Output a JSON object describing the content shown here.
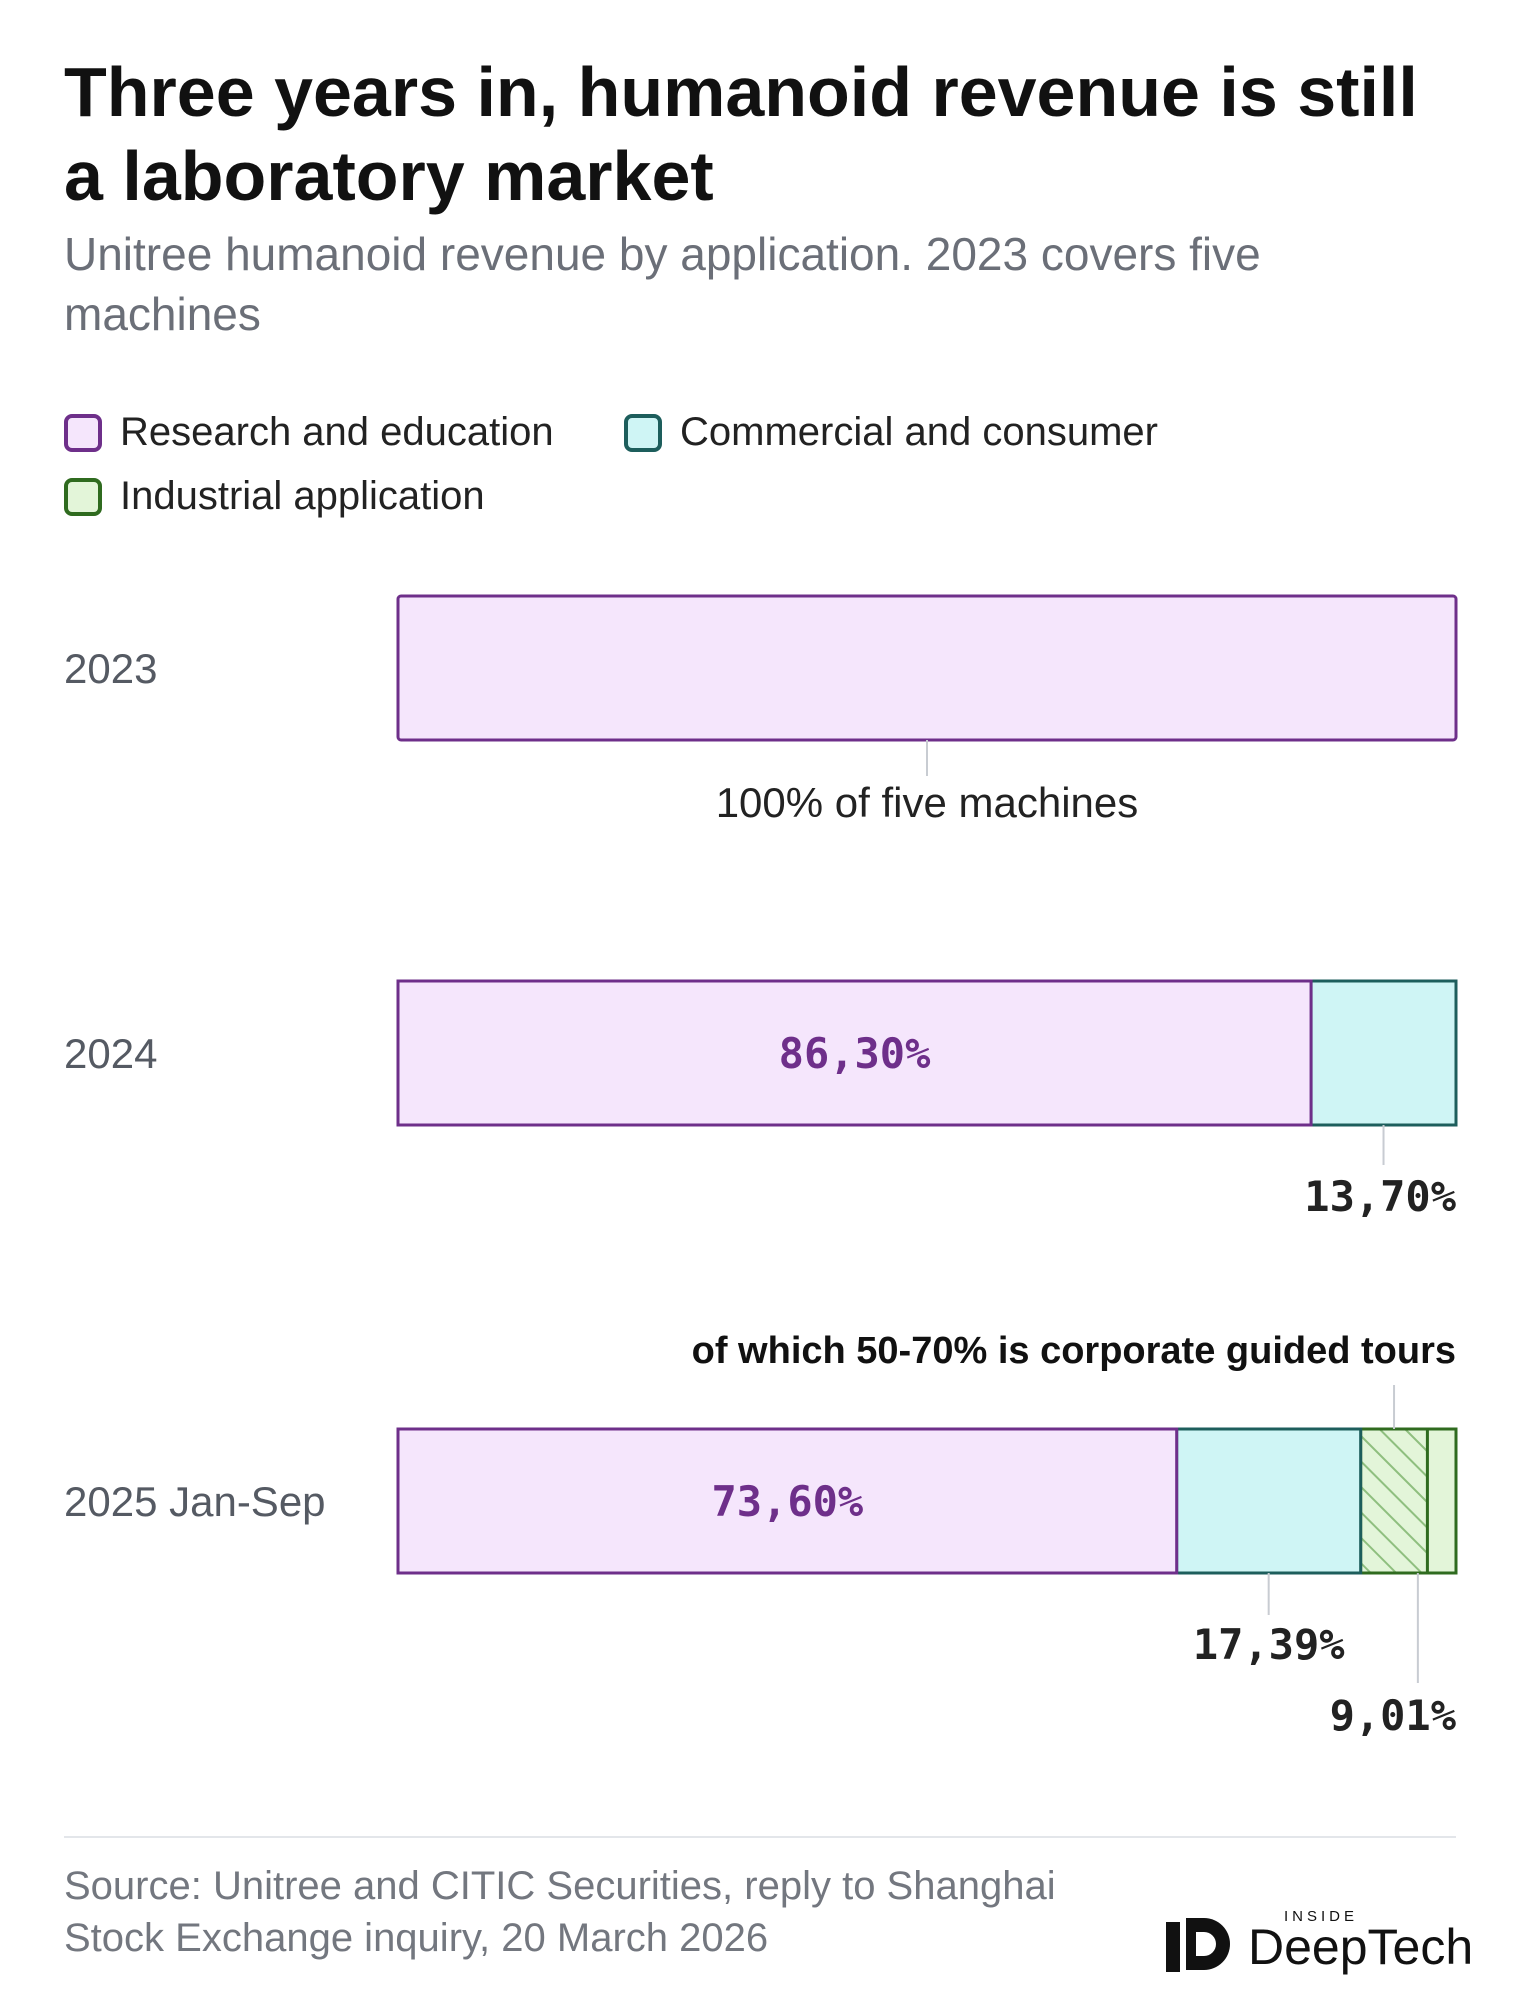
{
  "title": "Three years in, humanoid revenue is still a laboratory market",
  "subtitle": "Unitree humanoid revenue by application. 2023 covers five machines",
  "legend": [
    {
      "label": "Research and education",
      "color": "#f5e6fc",
      "border": "#6e2f8a"
    },
    {
      "label": "Commercial and consumer",
      "color": "#cff5f5",
      "border": "#1d5e5c"
    },
    {
      "label": "Industrial application",
      "color": "#e3f5d9",
      "border": "#2f6b1f"
    }
  ],
  "annotation": "of which 50-70% is corporate guided tours",
  "source": "Source: Unitree and CITIC Securities, reply to Shanghai Stock Exchange inquiry, 20 March 2026",
  "logo": {
    "small": "INSIDE",
    "brand": "DeepTech"
  },
  "chart_data": {
    "type": "bar",
    "orientation": "horizontal-stacked-100",
    "categories": [
      "2023",
      "2024",
      "2025 Jan-Sep"
    ],
    "series": [
      {
        "name": "Research and education",
        "values": [
          100,
          86.3,
          73.6
        ],
        "labels": [
          "100% of five machines",
          "86,30%",
          "73,60%"
        ]
      },
      {
        "name": "Commercial and consumer",
        "values": [
          0,
          13.7,
          17.39
        ],
        "labels": [
          "",
          "13,70%",
          "17,39%"
        ]
      },
      {
        "name": "Industrial application",
        "values": [
          0,
          0,
          9.01
        ],
        "labels": [
          "",
          "",
          "9,01%"
        ]
      }
    ],
    "industrial_2025_hatched_share": [
      50,
      70
    ],
    "colors": {
      "research_fill": "#f5e6fc",
      "research_stroke": "#6e2f8a",
      "commercial_fill": "#cff5f5",
      "commercial_stroke": "#1d5e5c",
      "industrial_fill": "#e3f5d9",
      "industrial_stroke": "#2f6b1f",
      "inside_label": "#6e2f8a",
      "outside_label": "#222222",
      "leader": "#c8ccd2"
    }
  }
}
